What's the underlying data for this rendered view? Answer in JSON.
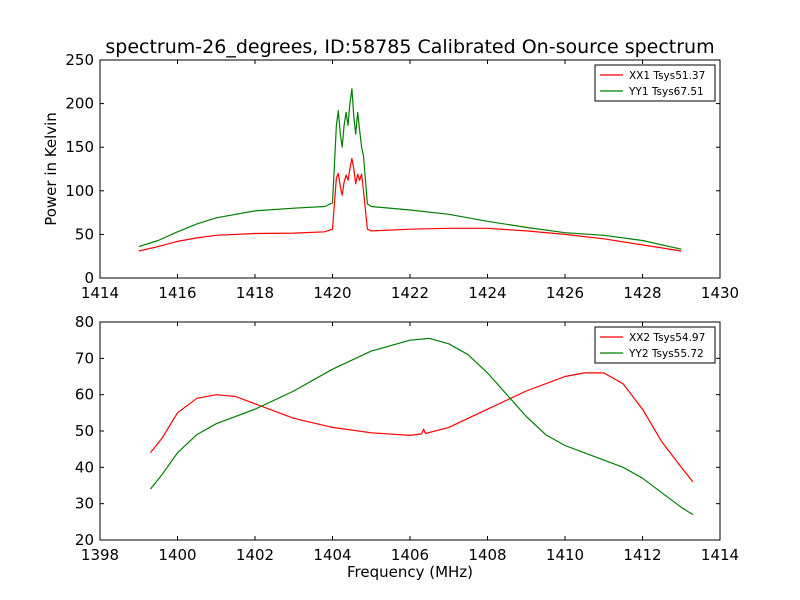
{
  "figure": {
    "title": "spectrum-26_degrees, ID:58785 Calibrated On-source spectrum",
    "ylabel": "Power in Kelvin",
    "xlabel": "Frequency (MHz)"
  },
  "chart_data": [
    {
      "type": "line",
      "title": "spectrum-26_degrees, ID:58785 Calibrated On-source spectrum",
      "xlabel": "",
      "ylabel": "Power in Kelvin",
      "xlim": [
        1414,
        1430
      ],
      "ylim": [
        0,
        250
      ],
      "xticks": [
        1414,
        1416,
        1418,
        1420,
        1422,
        1424,
        1426,
        1428,
        1430
      ],
      "yticks": [
        0,
        50,
        100,
        150,
        200,
        250
      ],
      "grid": false,
      "legend_position": "top-right",
      "series": [
        {
          "name": "XX1 Tsys51.37",
          "color": "#ff0000",
          "points": [
            [
              1415.0,
              31
            ],
            [
              1415.5,
              36
            ],
            [
              1416.0,
              42
            ],
            [
              1416.5,
              46
            ],
            [
              1417.0,
              49
            ],
            [
              1418.0,
              51
            ],
            [
              1419.0,
              51.5
            ],
            [
              1419.8,
              53
            ],
            [
              1420.0,
              56
            ],
            [
              1420.1,
              115
            ],
            [
              1420.15,
              120
            ],
            [
              1420.2,
              105
            ],
            [
              1420.25,
              95
            ],
            [
              1420.3,
              110
            ],
            [
              1420.35,
              118
            ],
            [
              1420.4,
              112
            ],
            [
              1420.45,
              125
            ],
            [
              1420.5,
              137
            ],
            [
              1420.55,
              125
            ],
            [
              1420.6,
              108
            ],
            [
              1420.65,
              119
            ],
            [
              1420.7,
              112
            ],
            [
              1420.75,
              119
            ],
            [
              1420.8,
              100
            ],
            [
              1420.9,
              56
            ],
            [
              1421.0,
              54
            ],
            [
              1422.0,
              56
            ],
            [
              1423.0,
              57
            ],
            [
              1424.0,
              57
            ],
            [
              1425.0,
              54
            ],
            [
              1426.0,
              50
            ],
            [
              1427.0,
              45
            ],
            [
              1428.0,
              38
            ],
            [
              1429.0,
              31
            ]
          ]
        },
        {
          "name": "YY1 Tsys67.51",
          "color": "#008000",
          "points": [
            [
              1415.0,
              36
            ],
            [
              1415.5,
              43
            ],
            [
              1416.0,
              53
            ],
            [
              1416.5,
              62
            ],
            [
              1417.0,
              69
            ],
            [
              1418.0,
              77
            ],
            [
              1419.0,
              80
            ],
            [
              1419.8,
              82
            ],
            [
              1420.0,
              86
            ],
            [
              1420.1,
              175
            ],
            [
              1420.15,
              192
            ],
            [
              1420.2,
              165
            ],
            [
              1420.25,
              150
            ],
            [
              1420.3,
              175
            ],
            [
              1420.35,
              190
            ],
            [
              1420.4,
              175
            ],
            [
              1420.45,
              200
            ],
            [
              1420.5,
              217
            ],
            [
              1420.55,
              185
            ],
            [
              1420.6,
              165
            ],
            [
              1420.65,
              190
            ],
            [
              1420.7,
              170
            ],
            [
              1420.75,
              150
            ],
            [
              1420.8,
              140
            ],
            [
              1420.9,
              85
            ],
            [
              1421.0,
              82
            ],
            [
              1422.0,
              78
            ],
            [
              1423.0,
              73
            ],
            [
              1424.0,
              65
            ],
            [
              1425.0,
              58
            ],
            [
              1426.0,
              52
            ],
            [
              1427.0,
              49
            ],
            [
              1428.0,
              43
            ],
            [
              1429.0,
              33
            ]
          ]
        }
      ]
    },
    {
      "type": "line",
      "title": "",
      "xlabel": "Frequency (MHz)",
      "ylabel": "",
      "xlim": [
        1398,
        1414
      ],
      "ylim": [
        20,
        80
      ],
      "xticks": [
        1398,
        1400,
        1402,
        1404,
        1406,
        1408,
        1410,
        1412,
        1414
      ],
      "yticks": [
        20,
        30,
        40,
        50,
        60,
        70,
        80
      ],
      "grid": false,
      "legend_position": "top-right",
      "series": [
        {
          "name": "XX2 Tsys54.97",
          "color": "#ff0000",
          "points": [
            [
              1399.3,
              44
            ],
            [
              1399.6,
              48
            ],
            [
              1400.0,
              55
            ],
            [
              1400.5,
              59
            ],
            [
              1401.0,
              60
            ],
            [
              1401.5,
              59.5
            ],
            [
              1402.0,
              57.5
            ],
            [
              1402.5,
              55.5
            ],
            [
              1403.0,
              53.5
            ],
            [
              1404.0,
              51
            ],
            [
              1405.0,
              49.5
            ],
            [
              1406.0,
              48.8
            ],
            [
              1406.3,
              49.2
            ],
            [
              1406.35,
              50.5
            ],
            [
              1406.4,
              49.3
            ],
            [
              1407.0,
              51
            ],
            [
              1408.0,
              56
            ],
            [
              1409.0,
              61
            ],
            [
              1410.0,
              65
            ],
            [
              1410.5,
              66
            ],
            [
              1411.0,
              66
            ],
            [
              1411.5,
              63
            ],
            [
              1412.0,
              56
            ],
            [
              1412.5,
              47
            ],
            [
              1413.0,
              40
            ],
            [
              1413.3,
              36
            ]
          ]
        },
        {
          "name": "YY2 Tsys55.72",
          "color": "#008000",
          "points": [
            [
              1399.3,
              34
            ],
            [
              1399.6,
              38
            ],
            [
              1400.0,
              44
            ],
            [
              1400.5,
              49
            ],
            [
              1401.0,
              52
            ],
            [
              1402.0,
              56
            ],
            [
              1403.0,
              61
            ],
            [
              1404.0,
              67
            ],
            [
              1405.0,
              72
            ],
            [
              1406.0,
              75
            ],
            [
              1406.5,
              75.5
            ],
            [
              1407.0,
              74
            ],
            [
              1407.5,
              71
            ],
            [
              1408.0,
              66
            ],
            [
              1408.5,
              60
            ],
            [
              1409.0,
              54
            ],
            [
              1409.5,
              49
            ],
            [
              1410.0,
              46
            ],
            [
              1410.5,
              44
            ],
            [
              1411.0,
              42
            ],
            [
              1411.5,
              40
            ],
            [
              1412.0,
              37
            ],
            [
              1412.5,
              33
            ],
            [
              1413.0,
              29
            ],
            [
              1413.3,
              27
            ]
          ]
        }
      ]
    }
  ]
}
